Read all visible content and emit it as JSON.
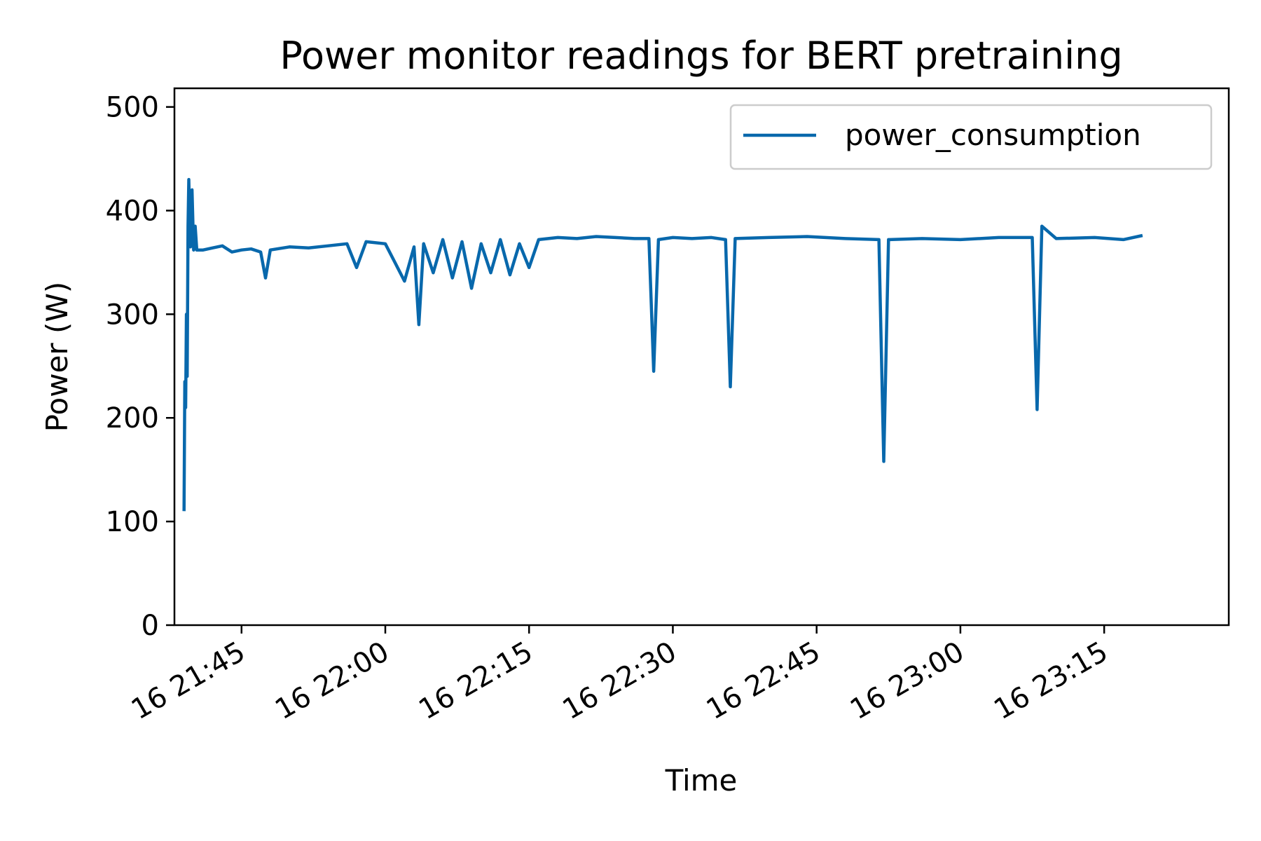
{
  "chart_data": {
    "type": "line",
    "title": "Power monitor readings for BERT pretraining",
    "xlabel": "Time",
    "ylabel": "Power (W)",
    "x_type": "time",
    "xlim": [
      "16 21:38",
      "16 23:28"
    ],
    "ylim": [
      0,
      518
    ],
    "x_ticks": [
      {
        "time": "16 21:45",
        "label": "16 21:45"
      },
      {
        "time": "16 22:00",
        "label": "16 22:00"
      },
      {
        "time": "16 22:15",
        "label": "16 22:15"
      },
      {
        "time": "16 22:30",
        "label": "16 22:30"
      },
      {
        "time": "16 22:45",
        "label": "16 22:45"
      },
      {
        "time": "16 23:00",
        "label": "16 23:00"
      },
      {
        "time": "16 23:15",
        "label": "16 23:15"
      }
    ],
    "y_ticks": [
      0,
      100,
      200,
      300,
      400,
      500
    ],
    "grid": false,
    "legend": {
      "position": "top-right",
      "entries": [
        "power_consumption"
      ]
    },
    "series": [
      {
        "name": "power_consumption",
        "color": "#0868ac",
        "points": [
          [
            "16 21:39:00",
            110
          ],
          [
            "16 21:39:05",
            235
          ],
          [
            "16 21:39:10",
            210
          ],
          [
            "16 21:39:15",
            300
          ],
          [
            "16 21:39:20",
            240
          ],
          [
            "16 21:39:25",
            385
          ],
          [
            "16 21:39:30",
            430
          ],
          [
            "16 21:39:40",
            365
          ],
          [
            "16 21:39:50",
            420
          ],
          [
            "16 21:40:00",
            362
          ],
          [
            "16 21:40:10",
            385
          ],
          [
            "16 21:40:20",
            362
          ],
          [
            "16 21:41",
            362
          ],
          [
            "16 21:42",
            364
          ],
          [
            "16 21:43",
            366
          ],
          [
            "16 21:44",
            360
          ],
          [
            "16 21:45",
            362
          ],
          [
            "16 21:46",
            363
          ],
          [
            "16 21:47",
            360
          ],
          [
            "16 21:47:30",
            335
          ],
          [
            "16 21:48",
            362
          ],
          [
            "16 21:50",
            365
          ],
          [
            "16 21:52",
            364
          ],
          [
            "16 21:54",
            366
          ],
          [
            "16 21:56",
            368
          ],
          [
            "16 21:57",
            345
          ],
          [
            "16 21:58",
            370
          ],
          [
            "16 22:00",
            368
          ],
          [
            "16 22:01",
            350
          ],
          [
            "16 22:02",
            332
          ],
          [
            "16 22:03",
            365
          ],
          [
            "16 22:03:30",
            290
          ],
          [
            "16 22:04",
            368
          ],
          [
            "16 22:05",
            340
          ],
          [
            "16 22:06",
            372
          ],
          [
            "16 22:07",
            335
          ],
          [
            "16 22:08",
            370
          ],
          [
            "16 22:09",
            325
          ],
          [
            "16 22:10",
            368
          ],
          [
            "16 22:11",
            340
          ],
          [
            "16 22:12",
            372
          ],
          [
            "16 22:13",
            338
          ],
          [
            "16 22:14",
            368
          ],
          [
            "16 22:15",
            345
          ],
          [
            "16 22:16",
            372
          ],
          [
            "16 22:18",
            374
          ],
          [
            "16 22:20",
            373
          ],
          [
            "16 22:22",
            375
          ],
          [
            "16 22:24",
            374
          ],
          [
            "16 22:26",
            373
          ],
          [
            "16 22:27:30",
            373
          ],
          [
            "16 22:28",
            245
          ],
          [
            "16 22:28:30",
            372
          ],
          [
            "16 22:30",
            374
          ],
          [
            "16 22:32",
            373
          ],
          [
            "16 22:34",
            374
          ],
          [
            "16 22:35:30",
            372
          ],
          [
            "16 22:36",
            230
          ],
          [
            "16 22:36:30",
            373
          ],
          [
            "16 22:40",
            374
          ],
          [
            "16 22:44",
            375
          ],
          [
            "16 22:48",
            373
          ],
          [
            "16 22:51:30",
            372
          ],
          [
            "16 22:52",
            158
          ],
          [
            "16 22:52:30",
            372
          ],
          [
            "16 22:56",
            373
          ],
          [
            "16 23:00",
            372
          ],
          [
            "16 23:04",
            374
          ],
          [
            "16 23:07:30",
            374
          ],
          [
            "16 23:08",
            208
          ],
          [
            "16 23:08:30",
            385
          ],
          [
            "16 23:10",
            373
          ],
          [
            "16 23:14",
            374
          ],
          [
            "16 23:17",
            372
          ],
          [
            "16 23:19",
            376
          ]
        ]
      }
    ]
  }
}
